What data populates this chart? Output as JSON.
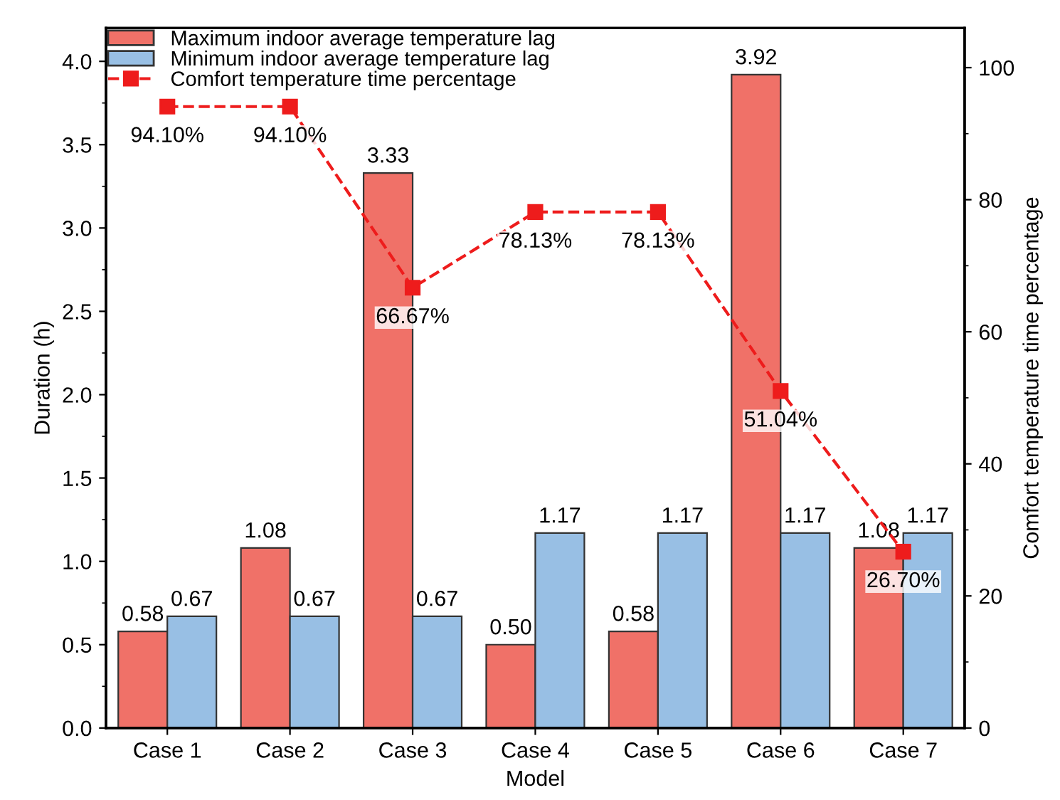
{
  "chart_data": {
    "type": "bar",
    "xlabel": "Model",
    "ylabel": "Duration (h)",
    "y2label": "Comfort temperature time percentage",
    "categories": [
      "Case 1",
      "Case 2",
      "Case 3",
      "Case 4",
      "Case 5",
      "Case 6",
      "Case 7"
    ],
    "series": [
      {
        "name": "Maximum indoor average temperature lag",
        "color": "#f07168",
        "values": [
          0.58,
          1.08,
          3.33,
          0.5,
          0.58,
          3.92,
          1.08
        ],
        "value_labels": [
          "0.58",
          "1.08",
          "3.33",
          "0.50",
          "0.58",
          "3.92",
          "1.08"
        ]
      },
      {
        "name": "Minimum indoor average temperature lag",
        "color": "#98bfe4",
        "values": [
          0.67,
          0.67,
          0.67,
          1.17,
          1.17,
          1.17,
          1.17
        ],
        "value_labels": [
          "0.67",
          "0.67",
          "0.67",
          "1.17",
          "1.17",
          "1.17",
          "1.17"
        ]
      },
      {
        "name": "Comfort temperature time percentage",
        "type": "line",
        "axis": "y2",
        "color": "#ee1c1c",
        "marker": "square",
        "line_style": "dashed",
        "values": [
          94.1,
          94.1,
          66.67,
          78.13,
          78.13,
          51.04,
          26.7
        ],
        "value_labels": [
          "94.10%",
          "94.10%",
          "66.67%",
          "78.13%",
          "78.13%",
          "51.04%",
          "26.70%"
        ]
      }
    ],
    "ylim": [
      0,
      4.2
    ],
    "yticks": [
      {
        "value": 0,
        "label": "0.0"
      },
      0.5,
      {
        "value": 1,
        "label": "1.0"
      },
      1.5,
      {
        "value": 2,
        "label": "2.0"
      },
      2.5,
      {
        "value": 3,
        "label": "3.0"
      },
      3.5,
      {
        "value": 4,
        "label": "4.0"
      }
    ],
    "y2lim": [
      0,
      106
    ],
    "y2ticks": [
      0,
      20,
      40,
      60,
      80,
      100
    ],
    "legend": "top left",
    "grid": false
  }
}
